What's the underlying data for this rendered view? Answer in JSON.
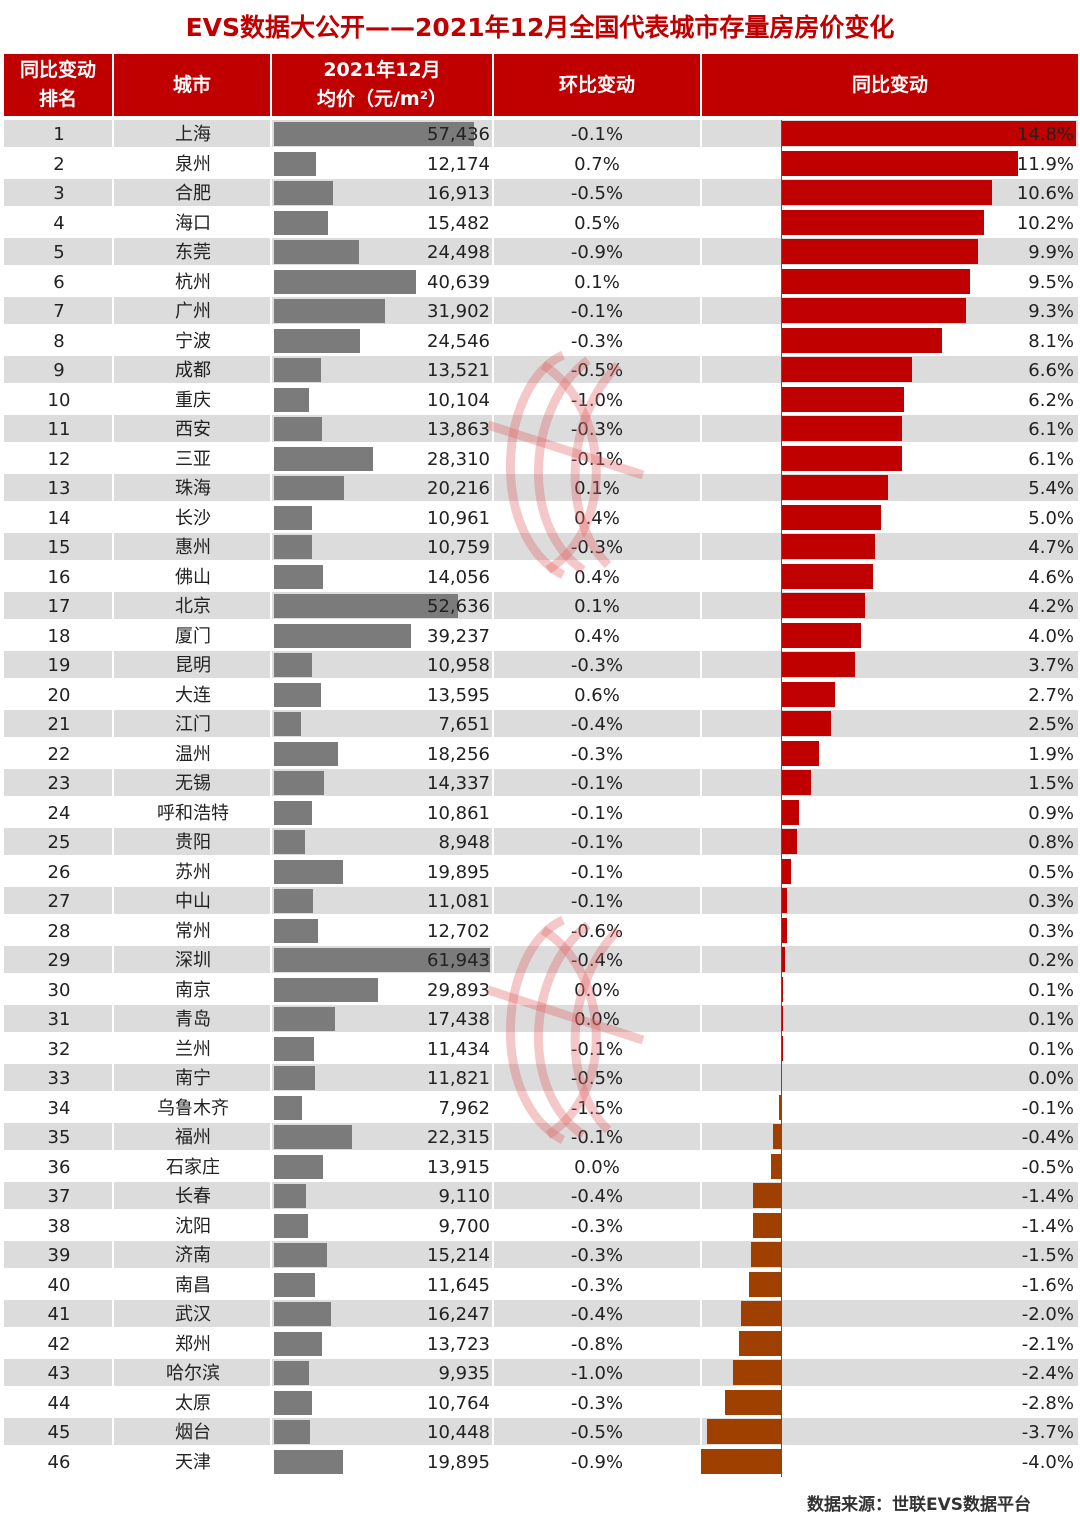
{
  "title": "EVS数据大公开——2021年12月全国代表城市存量房房价变化",
  "header": {
    "rank_line1": "同比变动",
    "rank_line2": "排名",
    "city": "城市",
    "price_line1": "2021年12月",
    "price_line2": "均价（元/m²）",
    "mom": "环比变动",
    "yoy": "同比变动"
  },
  "source": "数据来源：世联EVS数据平台",
  "colors": {
    "header_bg": "#c00000",
    "price_bar": "#7b7b7b",
    "yoy_positive": "#c00000",
    "yoy_negative": "#a04000",
    "row_gray": "#dcdcdc",
    "row_white": "#ffffff"
  },
  "chart_data": {
    "type": "table",
    "columns": [
      "rank",
      "city",
      "price",
      "mom",
      "yoy"
    ],
    "rows": [
      {
        "rank": "1",
        "city": "上海",
        "price": "57,436",
        "mom": "-0.1%",
        "yoy": "14.8%"
      },
      {
        "rank": "2",
        "city": "泉州",
        "price": "12,174",
        "mom": "0.7%",
        "yoy": "11.9%"
      },
      {
        "rank": "3",
        "city": "合肥",
        "price": "16,913",
        "mom": "-0.5%",
        "yoy": "10.6%"
      },
      {
        "rank": "4",
        "city": "海口",
        "price": "15,482",
        "mom": "0.5%",
        "yoy": "10.2%"
      },
      {
        "rank": "5",
        "city": "东莞",
        "price": "24,498",
        "mom": "-0.9%",
        "yoy": "9.9%"
      },
      {
        "rank": "6",
        "city": "杭州",
        "price": "40,639",
        "mom": "0.1%",
        "yoy": "9.5%"
      },
      {
        "rank": "7",
        "city": "广州",
        "price": "31,902",
        "mom": "-0.1%",
        "yoy": "9.3%"
      },
      {
        "rank": "8",
        "city": "宁波",
        "price": "24,546",
        "mom": "-0.3%",
        "yoy": "8.1%"
      },
      {
        "rank": "9",
        "city": "成都",
        "price": "13,521",
        "mom": "-0.5%",
        "yoy": "6.6%"
      },
      {
        "rank": "10",
        "city": "重庆",
        "price": "10,104",
        "mom": "-1.0%",
        "yoy": "6.2%"
      },
      {
        "rank": "11",
        "city": "西安",
        "price": "13,863",
        "mom": "-0.3%",
        "yoy": "6.1%"
      },
      {
        "rank": "12",
        "city": "三亚",
        "price": "28,310",
        "mom": "-0.1%",
        "yoy": "6.1%"
      },
      {
        "rank": "13",
        "city": "珠海",
        "price": "20,216",
        "mom": "0.1%",
        "yoy": "5.4%"
      },
      {
        "rank": "14",
        "city": "长沙",
        "price": "10,961",
        "mom": "0.4%",
        "yoy": "5.0%"
      },
      {
        "rank": "15",
        "city": "惠州",
        "price": "10,759",
        "mom": "-0.3%",
        "yoy": "4.7%"
      },
      {
        "rank": "16",
        "city": "佛山",
        "price": "14,056",
        "mom": "0.4%",
        "yoy": "4.6%"
      },
      {
        "rank": "17",
        "city": "北京",
        "price": "52,636",
        "mom": "0.1%",
        "yoy": "4.2%"
      },
      {
        "rank": "18",
        "city": "厦门",
        "price": "39,237",
        "mom": "0.4%",
        "yoy": "4.0%"
      },
      {
        "rank": "19",
        "city": "昆明",
        "price": "10,958",
        "mom": "-0.3%",
        "yoy": "3.7%"
      },
      {
        "rank": "20",
        "city": "大连",
        "price": "13,595",
        "mom": "0.6%",
        "yoy": "2.7%"
      },
      {
        "rank": "21",
        "city": "江门",
        "price": "7,651",
        "mom": "-0.4%",
        "yoy": "2.5%"
      },
      {
        "rank": "22",
        "city": "温州",
        "price": "18,256",
        "mom": "-0.3%",
        "yoy": "1.9%"
      },
      {
        "rank": "23",
        "city": "无锡",
        "price": "14,337",
        "mom": "-0.1%",
        "yoy": "1.5%"
      },
      {
        "rank": "24",
        "city": "呼和浩特",
        "price": "10,861",
        "mom": "-0.1%",
        "yoy": "0.9%"
      },
      {
        "rank": "25",
        "city": "贵阳",
        "price": "8,948",
        "mom": "-0.1%",
        "yoy": "0.8%"
      },
      {
        "rank": "26",
        "city": "苏州",
        "price": "19,895",
        "mom": "-0.1%",
        "yoy": "0.5%"
      },
      {
        "rank": "27",
        "city": "中山",
        "price": "11,081",
        "mom": "-0.1%",
        "yoy": "0.3%"
      },
      {
        "rank": "28",
        "city": "常州",
        "price": "12,702",
        "mom": "-0.6%",
        "yoy": "0.3%"
      },
      {
        "rank": "29",
        "city": "深圳",
        "price": "61,943",
        "mom": "-0.4%",
        "yoy": "0.2%"
      },
      {
        "rank": "30",
        "city": "南京",
        "price": "29,893",
        "mom": "0.0%",
        "yoy": "0.1%"
      },
      {
        "rank": "31",
        "city": "青岛",
        "price": "17,438",
        "mom": "0.0%",
        "yoy": "0.1%"
      },
      {
        "rank": "32",
        "city": "兰州",
        "price": "11,434",
        "mom": "-0.1%",
        "yoy": "0.1%"
      },
      {
        "rank": "33",
        "city": "南宁",
        "price": "11,821",
        "mom": "-0.5%",
        "yoy": "0.0%"
      },
      {
        "rank": "34",
        "city": "乌鲁木齐",
        "price": "7,962",
        "mom": "-1.5%",
        "yoy": "-0.1%"
      },
      {
        "rank": "35",
        "city": "福州",
        "price": "22,315",
        "mom": "-0.1%",
        "yoy": "-0.4%"
      },
      {
        "rank": "36",
        "city": "石家庄",
        "price": "13,915",
        "mom": "0.0%",
        "yoy": "-0.5%"
      },
      {
        "rank": "37",
        "city": "长春",
        "price": "9,110",
        "mom": "-0.4%",
        "yoy": "-1.4%"
      },
      {
        "rank": "38",
        "city": "沈阳",
        "price": "9,700",
        "mom": "-0.3%",
        "yoy": "-1.4%"
      },
      {
        "rank": "39",
        "city": "济南",
        "price": "15,214",
        "mom": "-0.3%",
        "yoy": "-1.5%"
      },
      {
        "rank": "40",
        "city": "南昌",
        "price": "11,645",
        "mom": "-0.3%",
        "yoy": "-1.6%"
      },
      {
        "rank": "41",
        "city": "武汉",
        "price": "16,247",
        "mom": "-0.4%",
        "yoy": "-2.0%"
      },
      {
        "rank": "42",
        "city": "郑州",
        "price": "13,723",
        "mom": "-0.8%",
        "yoy": "-2.1%"
      },
      {
        "rank": "43",
        "city": "哈尔滨",
        "price": "9,935",
        "mom": "-1.0%",
        "yoy": "-2.4%"
      },
      {
        "rank": "44",
        "city": "太原",
        "price": "10,764",
        "mom": "-0.3%",
        "yoy": "-2.8%"
      },
      {
        "rank": "45",
        "city": "烟台",
        "price": "10,448",
        "mom": "-0.5%",
        "yoy": "-3.7%"
      },
      {
        "rank": "46",
        "city": "天津",
        "price": "19,895",
        "mom": "-0.9%",
        "yoy": "-4.0%"
      }
    ]
  }
}
